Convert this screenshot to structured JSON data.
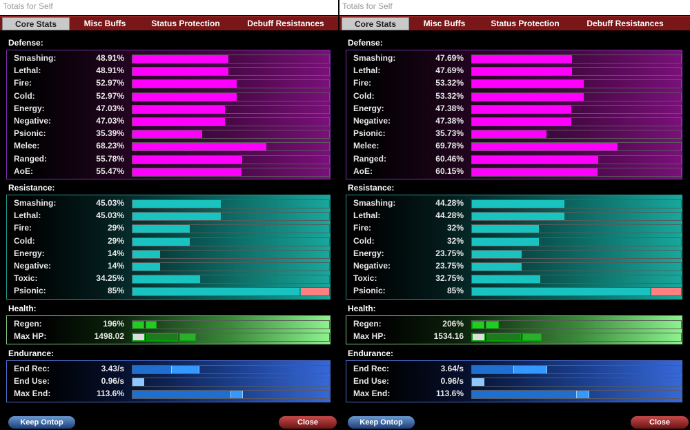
{
  "windows": [
    {
      "title": "Totals for Self",
      "tabs": [
        "Core Stats",
        "Misc Buffs",
        "Status Protection",
        "Debuff Resistances"
      ],
      "sections": {
        "defense": "Defense:",
        "resistance": "Resistance:",
        "health": "Health:",
        "endurance": "Endurance:"
      },
      "defense": [
        {
          "label": "Smashing:",
          "value": "48.91%",
          "pct": 48.91
        },
        {
          "label": "Lethal:",
          "value": "48.91%",
          "pct": 48.91
        },
        {
          "label": "Fire:",
          "value": "52.97%",
          "pct": 52.97
        },
        {
          "label": "Cold:",
          "value": "52.97%",
          "pct": 52.97
        },
        {
          "label": "Energy:",
          "value": "47.03%",
          "pct": 47.03
        },
        {
          "label": "Negative:",
          "value": "47.03%",
          "pct": 47.03
        },
        {
          "label": "Psionic:",
          "value": "35.39%",
          "pct": 35.39
        },
        {
          "label": "Melee:",
          "value": "68.23%",
          "pct": 68.23
        },
        {
          "label": "Ranged:",
          "value": "55.78%",
          "pct": 55.78
        },
        {
          "label": "AoE:",
          "value": "55.47%",
          "pct": 55.47
        }
      ],
      "resistance": [
        {
          "label": "Smashing:",
          "value": "45.03%",
          "pct": 45.03
        },
        {
          "label": "Lethal:",
          "value": "45.03%",
          "pct": 45.03
        },
        {
          "label": "Fire:",
          "value": "29%",
          "pct": 29
        },
        {
          "label": "Cold:",
          "value": "29%",
          "pct": 29
        },
        {
          "label": "Energy:",
          "value": "14%",
          "pct": 14
        },
        {
          "label": "Negative:",
          "value": "14%",
          "pct": 14
        },
        {
          "label": "Toxic:",
          "value": "34.25%",
          "pct": 34.25
        },
        {
          "label": "Psionic:",
          "value": "85%",
          "pct": 85,
          "cap": true
        }
      ],
      "health": [
        {
          "label": "Regen:",
          "value": "196%",
          "kind": "regen",
          "segs": [
            0.065,
            0.065
          ]
        },
        {
          "label": "Max HP:",
          "value": "1498.02",
          "kind": "hp",
          "segs": [
            0.07,
            0.17,
            0.09
          ]
        }
      ],
      "endurance": [
        {
          "label": "End Rec:",
          "value": "3.43/s",
          "segs": [
            0.2,
            0.14
          ]
        },
        {
          "label": "End Use:",
          "value": "0.96/s",
          "segs": [
            0.06
          ]
        },
        {
          "label": "Max End:",
          "value": "113.6%",
          "segs": [
            0.5,
            0.06
          ]
        }
      ],
      "buttons": {
        "keep": "Keep Ontop",
        "close": "Close"
      }
    },
    {
      "title": "Totals for Self",
      "tabs": [
        "Core Stats",
        "Misc Buffs",
        "Status Protection",
        "Debuff Resistances"
      ],
      "sections": {
        "defense": "Defense:",
        "resistance": "Resistance:",
        "health": "Health:",
        "endurance": "Endurance:"
      },
      "defense": [
        {
          "label": "Smashing:",
          "value": "47.69%",
          "pct": 47.69
        },
        {
          "label": "Lethal:",
          "value": "47.69%",
          "pct": 47.69
        },
        {
          "label": "Fire:",
          "value": "53.32%",
          "pct": 53.32
        },
        {
          "label": "Cold:",
          "value": "53.32%",
          "pct": 53.32
        },
        {
          "label": "Energy:",
          "value": "47.38%",
          "pct": 47.38
        },
        {
          "label": "Negative:",
          "value": "47.38%",
          "pct": 47.38
        },
        {
          "label": "Psionic:",
          "value": "35.73%",
          "pct": 35.73
        },
        {
          "label": "Melee:",
          "value": "69.78%",
          "pct": 69.78
        },
        {
          "label": "Ranged:",
          "value": "60.46%",
          "pct": 60.46
        },
        {
          "label": "AoE:",
          "value": "60.15%",
          "pct": 60.15
        }
      ],
      "resistance": [
        {
          "label": "Smashing:",
          "value": "44.28%",
          "pct": 44.28
        },
        {
          "label": "Lethal:",
          "value": "44.28%",
          "pct": 44.28
        },
        {
          "label": "Fire:",
          "value": "32%",
          "pct": 32
        },
        {
          "label": "Cold:",
          "value": "32%",
          "pct": 32
        },
        {
          "label": "Energy:",
          "value": "23.75%",
          "pct": 23.75
        },
        {
          "label": "Negative:",
          "value": "23.75%",
          "pct": 23.75
        },
        {
          "label": "Toxic:",
          "value": "32.75%",
          "pct": 32.75
        },
        {
          "label": "Psionic:",
          "value": "85%",
          "pct": 85,
          "cap": true
        }
      ],
      "health": [
        {
          "label": "Regen:",
          "value": "206%",
          "kind": "regen",
          "segs": [
            0.065,
            0.07
          ]
        },
        {
          "label": "Max HP:",
          "value": "1534.16",
          "kind": "hp",
          "segs": [
            0.07,
            0.17,
            0.1
          ]
        }
      ],
      "endurance": [
        {
          "label": "End Rec:",
          "value": "3.64/s",
          "segs": [
            0.2,
            0.16
          ]
        },
        {
          "label": "End Use:",
          "value": "0.96/s",
          "segs": [
            0.06
          ]
        },
        {
          "label": "Max End:",
          "value": "113.6%",
          "segs": [
            0.5,
            0.06
          ]
        }
      ],
      "buttons": {
        "keep": "Keep Ontop",
        "close": "Close"
      }
    }
  ],
  "colors": {
    "defense": "#ff00ff",
    "resistance": "#19c4c0",
    "cap": "#ff8080",
    "regen": "#22cc22",
    "hpBase": "#dddddd",
    "hpA": "#1f7a1f",
    "hpB": "#2ab02a",
    "endA": "#1f6fd0",
    "endB": "#3399ff",
    "tabbar": "#781618"
  }
}
